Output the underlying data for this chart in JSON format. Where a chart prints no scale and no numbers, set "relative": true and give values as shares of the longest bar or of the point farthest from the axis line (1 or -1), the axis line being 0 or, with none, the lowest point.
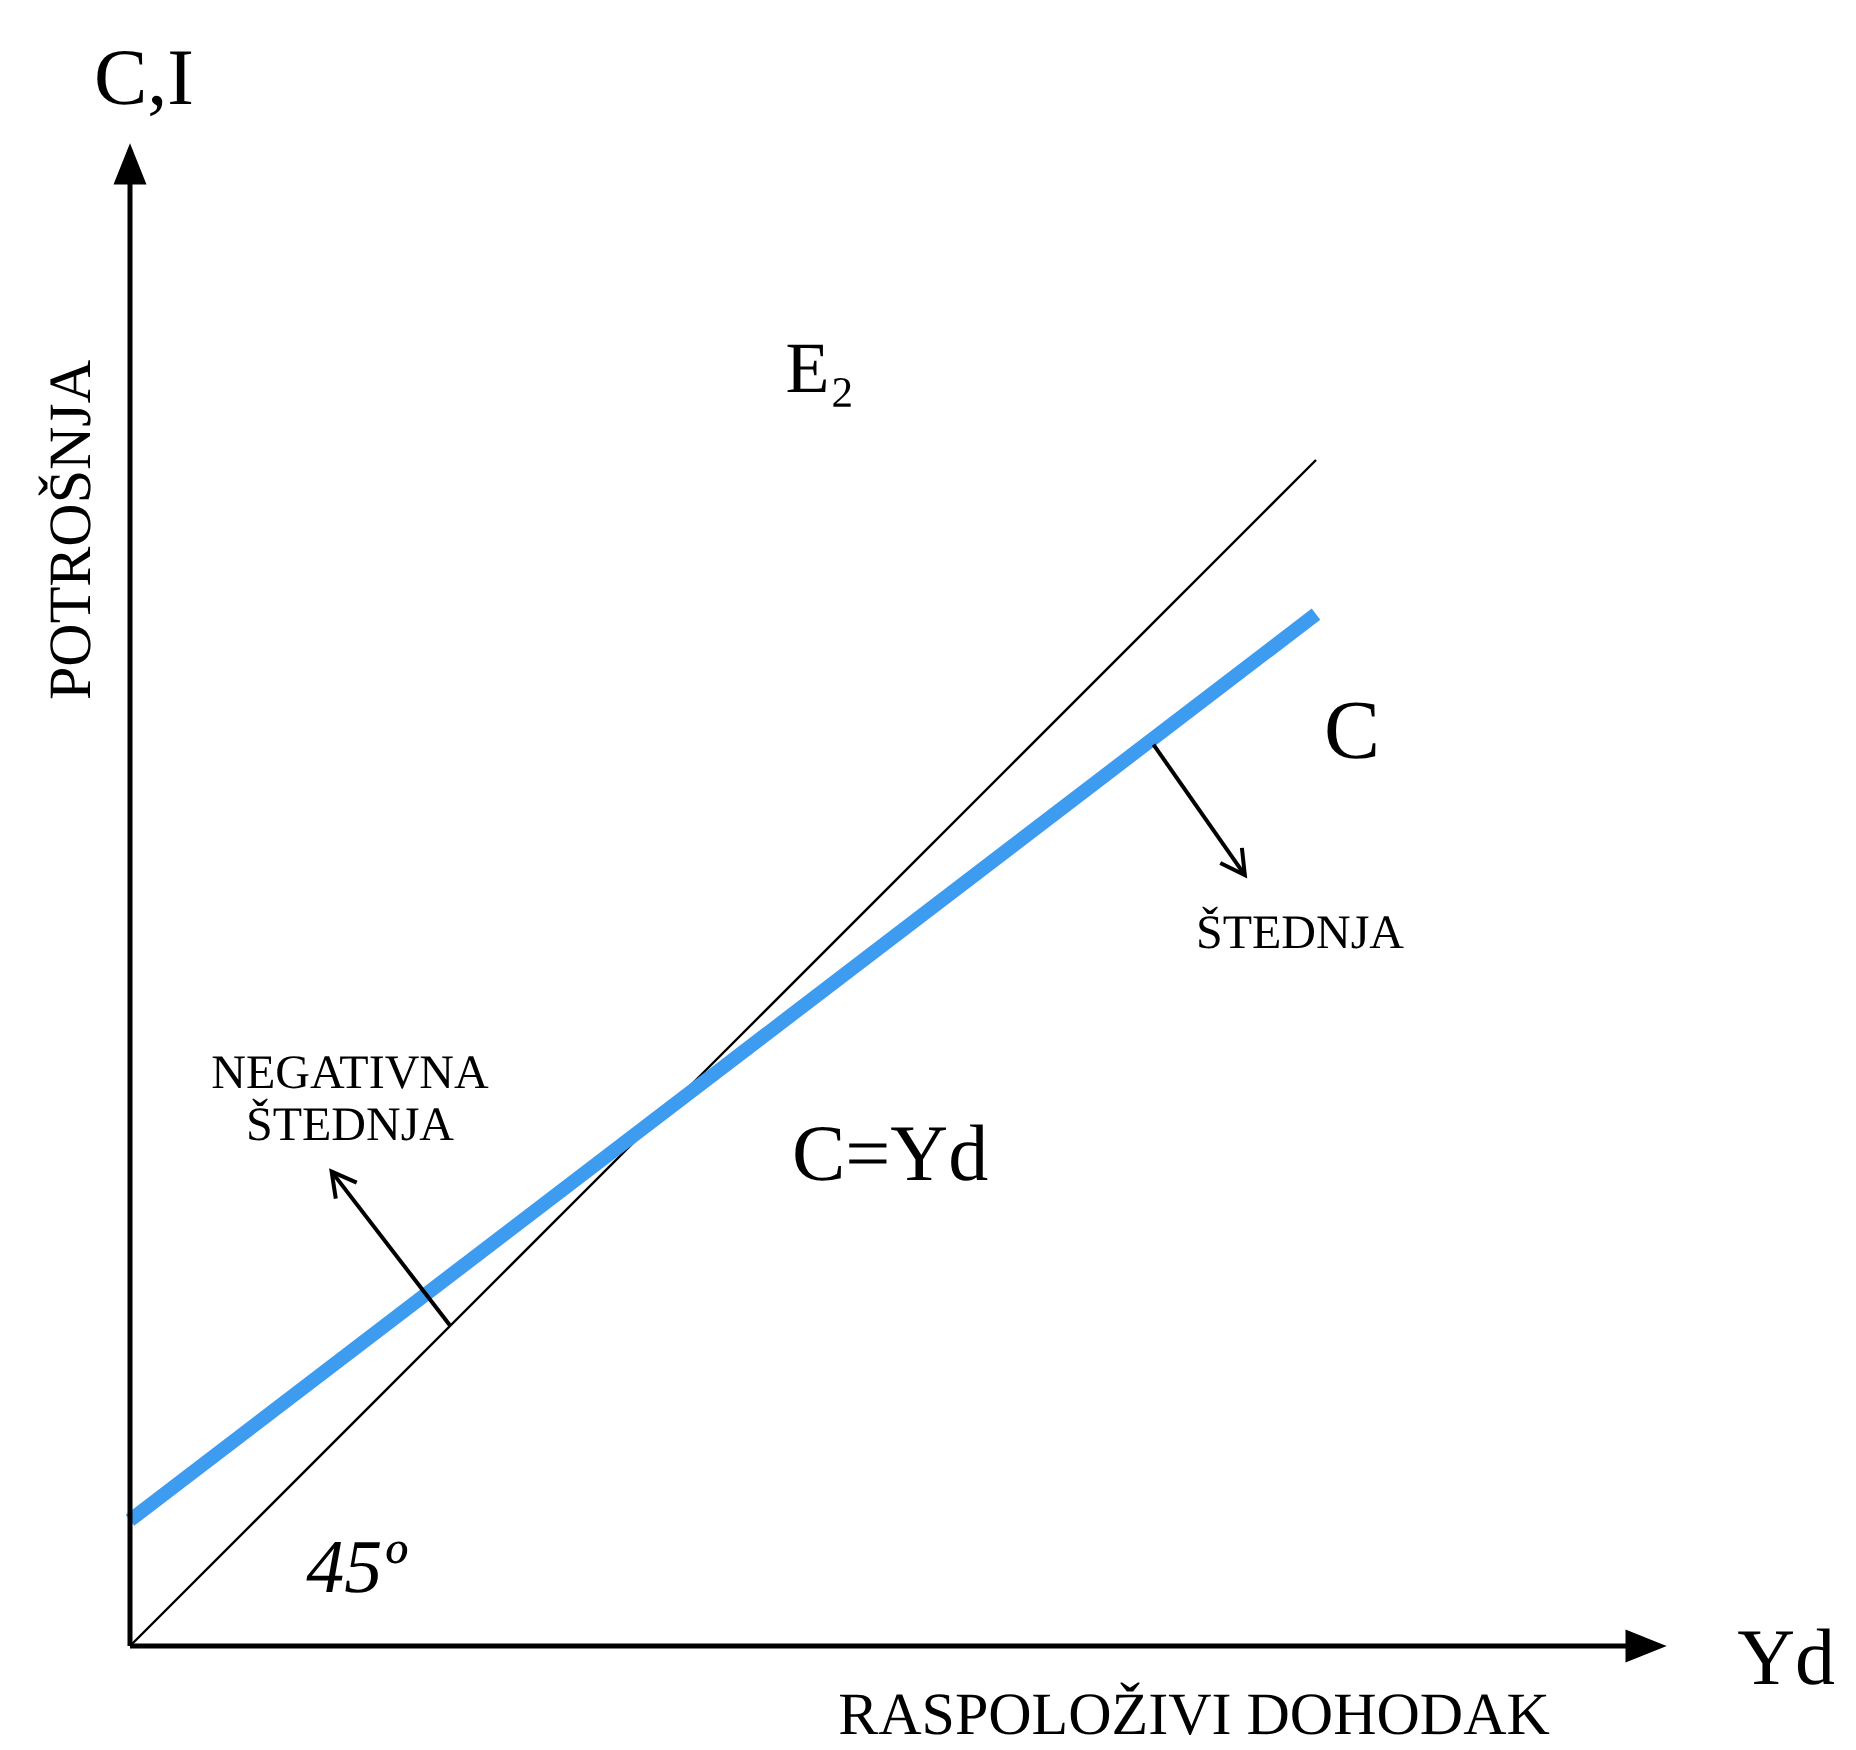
{
  "chart_data": {
    "type": "line",
    "relative": true,
    "xlabel": "RASPOLOŽIVI DOHODAK",
    "ylabel": "POTROŠNJA",
    "categories": [
      null,
      null,
      null
    ],
    "annotations": [
      "C,I",
      "Yd",
      "E₂",
      "C",
      "ŠTEDNJA",
      "NEGATIVNA\nŠTEDNJA",
      "C=Yd",
      "45º"
    ],
    "series": [
      {
        "color": "#000000",
        "values": [
          0,
          0.5,
          1
        ]
      },
      {
        "color": "#3d9bf0",
        "values": [
          0.106,
          0.488,
          0.87
        ]
      }
    ]
  }
}
